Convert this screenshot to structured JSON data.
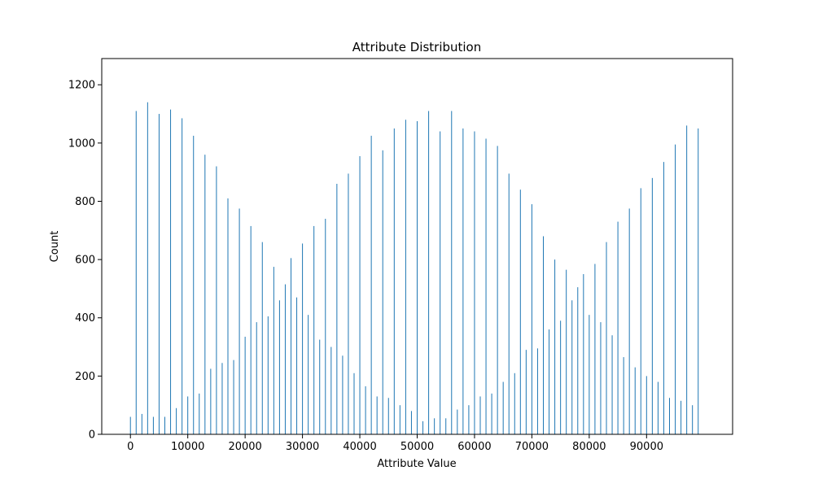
{
  "chart_data": {
    "type": "bar",
    "title": "Attribute Distribution",
    "xlabel": "Attribute Value",
    "ylabel": "Count",
    "xlim": [
      -5000,
      105000
    ],
    "ylim": [
      0,
      1290
    ],
    "x_ticks": [
      0,
      10000,
      20000,
      30000,
      40000,
      50000,
      60000,
      70000,
      80000,
      90000
    ],
    "y_ticks": [
      0,
      200,
      400,
      600,
      800,
      1000,
      1200
    ],
    "bar_color": "#1f77b4",
    "grid": false,
    "x": [
      0,
      1000,
      2000,
      3000,
      4000,
      5000,
      6000,
      7000,
      8000,
      9000,
      10000,
      11000,
      12000,
      13000,
      14000,
      15000,
      16000,
      17000,
      18000,
      19000,
      20000,
      21000,
      22000,
      23000,
      24000,
      25000,
      26000,
      27000,
      28000,
      29000,
      30000,
      31000,
      32000,
      33000,
      34000,
      35000,
      36000,
      37000,
      38000,
      39000,
      40000,
      41000,
      42000,
      43000,
      44000,
      45000,
      46000,
      47000,
      48000,
      49000,
      50000,
      51000,
      52000,
      53000,
      54000,
      55000,
      56000,
      57000,
      58000,
      59000,
      60000,
      61000,
      62000,
      63000,
      64000,
      65000,
      66000,
      67000,
      68000,
      69000,
      70000,
      71000,
      72000,
      73000,
      74000,
      75000,
      76000,
      77000,
      78000,
      79000,
      80000,
      81000,
      82000,
      83000,
      84000,
      85000,
      86000,
      87000,
      88000,
      89000,
      90000,
      91000,
      92000,
      93000,
      94000,
      95000,
      96000,
      97000,
      98000,
      99000
    ],
    "values": [
      60,
      1110,
      70,
      1140,
      60,
      1100,
      60,
      1115,
      90,
      1085,
      130,
      1025,
      140,
      960,
      225,
      920,
      245,
      810,
      255,
      775,
      335,
      715,
      385,
      660,
      405,
      575,
      460,
      515,
      605,
      470,
      655,
      410,
      715,
      325,
      740,
      300,
      860,
      270,
      895,
      210,
      955,
      165,
      1025,
      130,
      975,
      125,
      1050,
      100,
      1080,
      80,
      1075,
      45,
      1110,
      55,
      1040,
      55,
      1110,
      85,
      1050,
      100,
      1040,
      130,
      1015,
      140,
      990,
      180,
      895,
      210,
      840,
      290,
      790,
      295,
      680,
      360,
      600,
      390,
      565,
      460,
      505,
      550,
      410,
      585,
      385,
      660,
      340,
      730,
      265,
      775,
      230,
      845,
      200,
      880,
      180,
      935,
      125,
      995,
      115,
      1060,
      100,
      1050
    ],
    "values_tail_note": ""
  }
}
